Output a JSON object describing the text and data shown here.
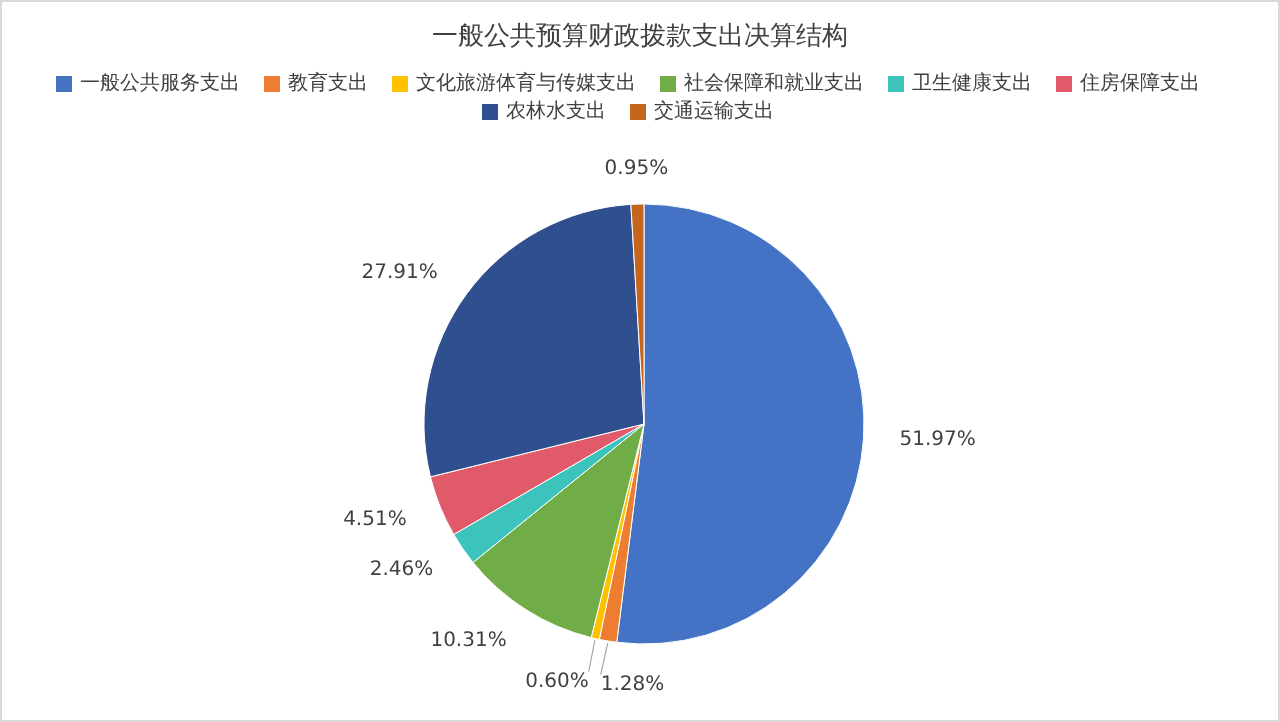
{
  "chart_data": {
    "type": "pie",
    "title": "一般公共预算财政拨款支出决算结构",
    "categories": [
      "一般公共服务支出",
      "教育支出",
      "文化旅游体育与传媒支出",
      "社会保障和就业支出",
      "卫生健康支出",
      "住房保障支出",
      "农林水支出",
      "交通运输支出"
    ],
    "values": [
      51.97,
      1.28,
      0.6,
      10.31,
      2.46,
      4.51,
      27.91,
      0.95
    ],
    "value_labels": [
      "51.97%",
      "1.28%",
      "0.60%",
      "10.31%",
      "2.46%",
      "4.51%",
      "27.91%",
      "0.95%"
    ],
    "colors": [
      "#4472c4",
      "#ed7d31",
      "#ffc000",
      "#70ad47",
      "#3cc4bc",
      "#e05a6a",
      "#2f4f8f",
      "#c5661e"
    ],
    "legend": "top"
  }
}
